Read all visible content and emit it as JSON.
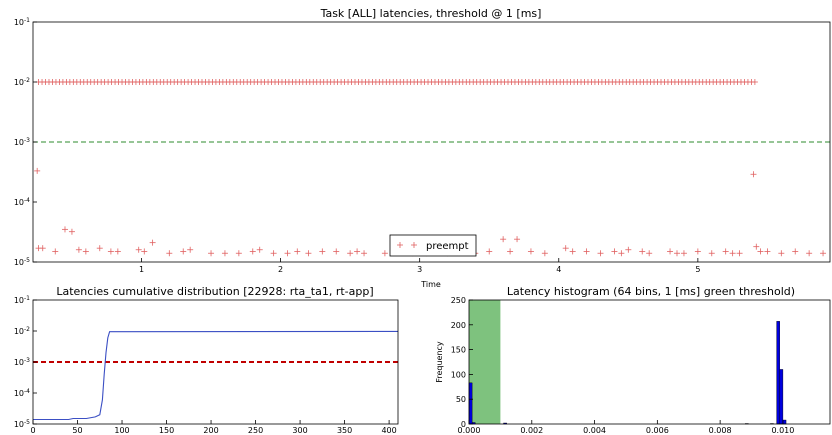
{
  "chart_data": [
    {
      "type": "scatter",
      "title": "Task [ALL] latencies, threshold @ 1 [ms]",
      "xlabel": "Time",
      "ylabel": "",
      "yscale": "log",
      "xlim": [
        0.22,
        5.95
      ],
      "ylim": [
        1e-05,
        0.1
      ],
      "xticks": [
        "1",
        "2",
        "3",
        "4",
        "5"
      ],
      "yticks": [
        {
          "base": "10",
          "exp": "-1"
        },
        {
          "base": "10",
          "exp": "-2"
        },
        {
          "base": "10",
          "exp": "-3"
        },
        {
          "base": "10",
          "exp": "-4"
        },
        {
          "base": "10",
          "exp": "-5"
        }
      ],
      "threshold": 0.001,
      "threshold_color": "#2e8b2e",
      "legend": {
        "label": "preempt",
        "placement": "lower-center"
      },
      "series": [
        {
          "name": "preempt",
          "color": "#e06060",
          "marker": "+",
          "high_band": {
            "x_start": 0.26,
            "x_end": 5.43,
            "step": 0.025,
            "value": 0.01
          },
          "points": [
            [
              0.25,
              0.00033
            ],
            [
              0.26,
              1.7e-05
            ],
            [
              0.29,
              1.7e-05
            ],
            [
              0.38,
              1.5e-05
            ],
            [
              0.45,
              3.5e-05
            ],
            [
              0.5,
              3.2e-05
            ],
            [
              0.55,
              1.6e-05
            ],
            [
              0.6,
              1.5e-05
            ],
            [
              0.7,
              1.7e-05
            ],
            [
              0.78,
              1.5e-05
            ],
            [
              0.83,
              1.5e-05
            ],
            [
              0.98,
              1.6e-05
            ],
            [
              1.02,
              1.5e-05
            ],
            [
              1.08,
              2.1e-05
            ],
            [
              1.2,
              1.4e-05
            ],
            [
              1.3,
              1.5e-05
            ],
            [
              1.35,
              1.6e-05
            ],
            [
              1.5,
              1.4e-05
            ],
            [
              1.6,
              1.4e-05
            ],
            [
              1.7,
              1.4e-05
            ],
            [
              1.8,
              1.5e-05
            ],
            [
              1.85,
              1.6e-05
            ],
            [
              1.95,
              1.4e-05
            ],
            [
              2.05,
              1.4e-05
            ],
            [
              2.12,
              1.5e-05
            ],
            [
              2.2,
              1.4e-05
            ],
            [
              2.3,
              1.5e-05
            ],
            [
              2.4,
              1.5e-05
            ],
            [
              2.5,
              1.4e-05
            ],
            [
              2.55,
              1.5e-05
            ],
            [
              2.6,
              1.4e-05
            ],
            [
              2.75,
              1.4e-05
            ],
            [
              2.85,
              1.5e-05
            ],
            [
              2.95,
              1.4e-05
            ],
            [
              3.05,
              1.4e-05
            ],
            [
              3.1,
              1.5e-05
            ],
            [
              3.2,
              1.4e-05
            ],
            [
              3.3,
              1.5e-05
            ],
            [
              3.4,
              1.4e-05
            ],
            [
              3.5,
              1.5e-05
            ],
            [
              3.6,
              2.4e-05
            ],
            [
              3.65,
              1.5e-05
            ],
            [
              3.7,
              2.4e-05
            ],
            [
              3.8,
              1.5e-05
            ],
            [
              3.9,
              1.4e-05
            ],
            [
              4.05,
              1.7e-05
            ],
            [
              4.1,
              1.5e-05
            ],
            [
              4.2,
              1.5e-05
            ],
            [
              4.3,
              1.4e-05
            ],
            [
              4.4,
              1.5e-05
            ],
            [
              4.45,
              1.4e-05
            ],
            [
              4.5,
              1.6e-05
            ],
            [
              4.6,
              1.5e-05
            ],
            [
              4.65,
              1.4e-05
            ],
            [
              4.8,
              1.5e-05
            ],
            [
              4.85,
              1.4e-05
            ],
            [
              4.9,
              1.4e-05
            ],
            [
              5.0,
              1.5e-05
            ],
            [
              5.1,
              1.4e-05
            ],
            [
              5.2,
              1.5e-05
            ],
            [
              5.25,
              1.4e-05
            ],
            [
              5.3,
              1.4e-05
            ],
            [
              5.4,
              0.00029
            ],
            [
              5.42,
              1.8e-05
            ],
            [
              5.45,
              1.5e-05
            ],
            [
              5.5,
              1.5e-05
            ],
            [
              5.6,
              1.4e-05
            ],
            [
              5.7,
              1.5e-05
            ],
            [
              5.8,
              1.4e-05
            ],
            [
              5.9,
              1.4e-05
            ]
          ]
        }
      ]
    },
    {
      "type": "line",
      "title": "Latencies cumulative distribution [22928: rta_ta1, rt-app]",
      "xlabel": "",
      "ylabel": "",
      "yscale": "log",
      "xlim": [
        0,
        410
      ],
      "ylim": [
        1e-05,
        0.1
      ],
      "xticks": [
        "0",
        "50",
        "100",
        "150",
        "200",
        "250",
        "300",
        "350",
        "400"
      ],
      "yticks": [
        {
          "base": "10",
          "exp": "-1"
        },
        {
          "base": "10",
          "exp": "-2"
        },
        {
          "base": "10",
          "exp": "-3"
        },
        {
          "base": "10",
          "exp": "-4"
        },
        {
          "base": "10",
          "exp": "-5"
        }
      ],
      "threshold": 0.001,
      "threshold_color": "#c00000",
      "series": [
        {
          "color": "#3b4fc4",
          "x": [
            0,
            40,
            45,
            60,
            70,
            75,
            78,
            80,
            82,
            84,
            86,
            410
          ],
          "y": [
            1.4e-05,
            1.4e-05,
            1.5e-05,
            1.5e-05,
            1.7e-05,
            2e-05,
            6e-05,
            0.0004,
            0.002,
            0.006,
            0.0095,
            0.0097
          ]
        }
      ]
    },
    {
      "type": "bar",
      "title": "Latency histogram (64 bins, 1 [ms] green threshold)",
      "xlabel": "",
      "ylabel": "Frequency",
      "xlim": [
        0,
        0.0115
      ],
      "ylim": [
        0,
        250
      ],
      "xticks": [
        "0.000",
        "0.002",
        "0.004",
        "0.006",
        "0.008",
        "0.010"
      ],
      "yticks": [
        "0",
        "50",
        "100",
        "150",
        "200",
        "250"
      ],
      "threshold_span": [
        0,
        0.001
      ],
      "threshold_color": "#7ec27e",
      "bar_color": "#0000dd",
      "bar_width": 0.0001,
      "bins": [
        {
          "x": 0.0,
          "value": 83
        },
        {
          "x": 0.0001,
          "value": 3
        },
        {
          "x": 0.0011,
          "value": 2
        },
        {
          "x": 0.0088,
          "value": 1
        },
        {
          "x": 0.0096,
          "value": 1
        },
        {
          "x": 0.0098,
          "value": 207
        },
        {
          "x": 0.0099,
          "value": 110
        },
        {
          "x": 0.01,
          "value": 8
        }
      ]
    }
  ]
}
